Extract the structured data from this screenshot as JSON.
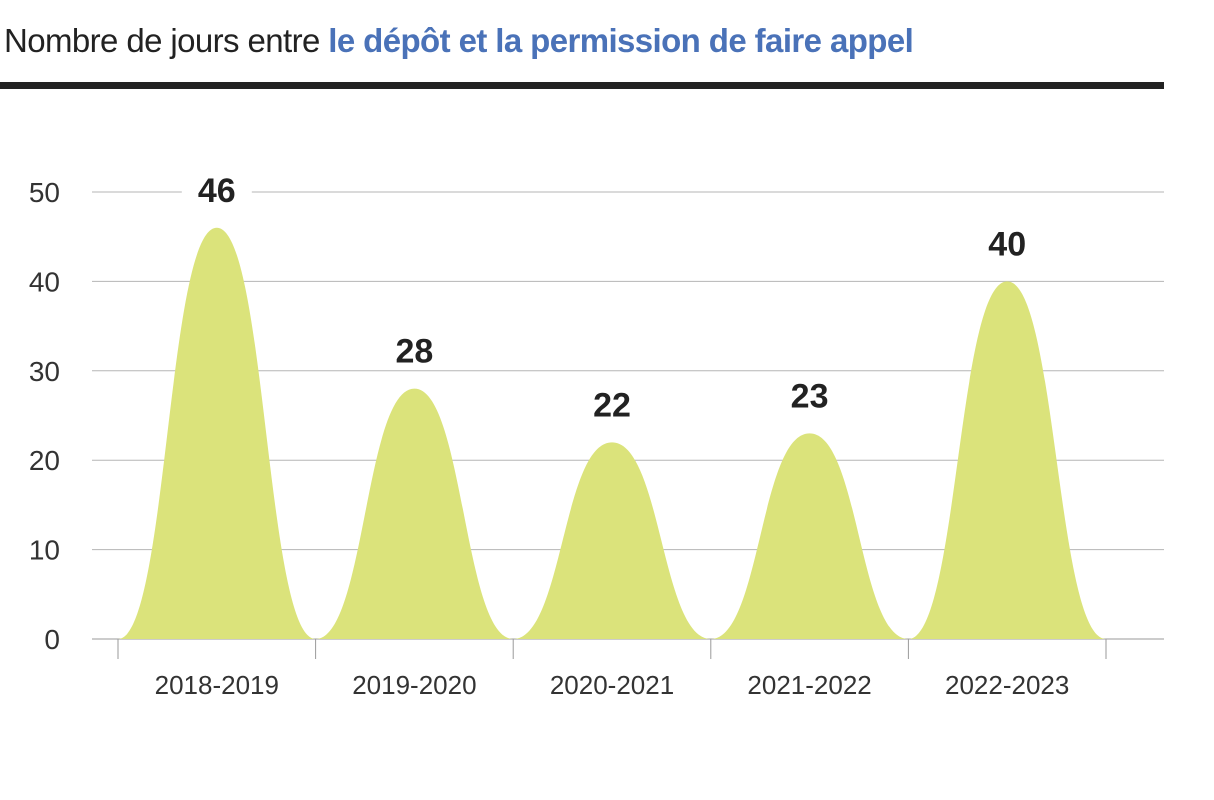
{
  "title": {
    "prefix": "Nombre de jours entre ",
    "highlight": "le dépôt et la permission de faire appel"
  },
  "chart_data": {
    "type": "area",
    "title": "Nombre de jours entre le dépôt et la permission de faire appel",
    "categories": [
      "2018-2019",
      "2019-2020",
      "2020-2021",
      "2021-2022",
      "2022-2023"
    ],
    "values": [
      46,
      28,
      22,
      23,
      40
    ],
    "data_labels": [
      "46",
      "28",
      "22",
      "23",
      "40"
    ],
    "ylim": [
      0,
      50
    ],
    "yticks": [
      0,
      10,
      20,
      30,
      40,
      50
    ],
    "grid": true,
    "legend": "none",
    "xlabel": "",
    "ylabel": "",
    "colors": {
      "fill": "#dbe37b",
      "grid": "#b5b5b5",
      "axis": "#9a9a9a",
      "text": "#222222",
      "title_accent": "#4a72b8"
    }
  }
}
